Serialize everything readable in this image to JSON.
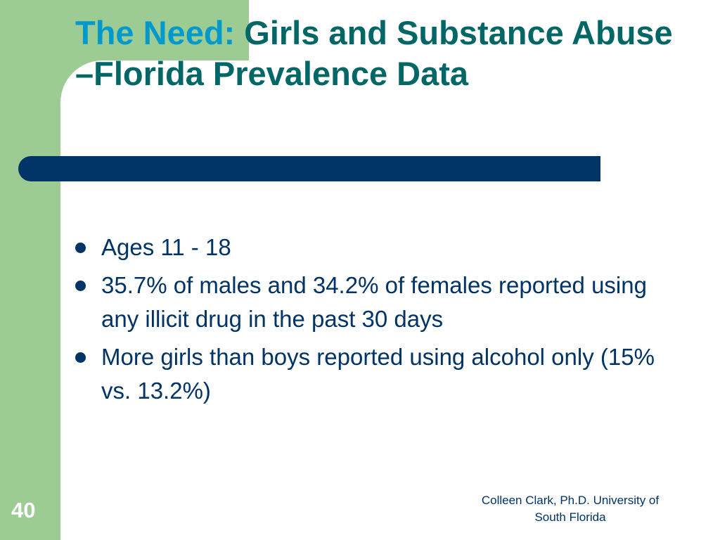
{
  "colors": {
    "accent_green": "#9ccc94",
    "title_teal": "#006666",
    "title_lead_blue": "#0099cc",
    "navy": "#003366"
  },
  "title": {
    "lead": "The Need:",
    "rest": "Girls and Substance Abuse –Florida Prevalence Data"
  },
  "bullets": [
    "Ages 11 - 18",
    "35.7% of males and 34.2% of females reported using any illicit drug in the past 30 days",
    "More girls than boys reported using alcohol only (15% vs. 13.2%)"
  ],
  "slide_number": "40",
  "footer": {
    "line1": "Colleen Clark, Ph.D. University of",
    "line2": "South Florida"
  }
}
